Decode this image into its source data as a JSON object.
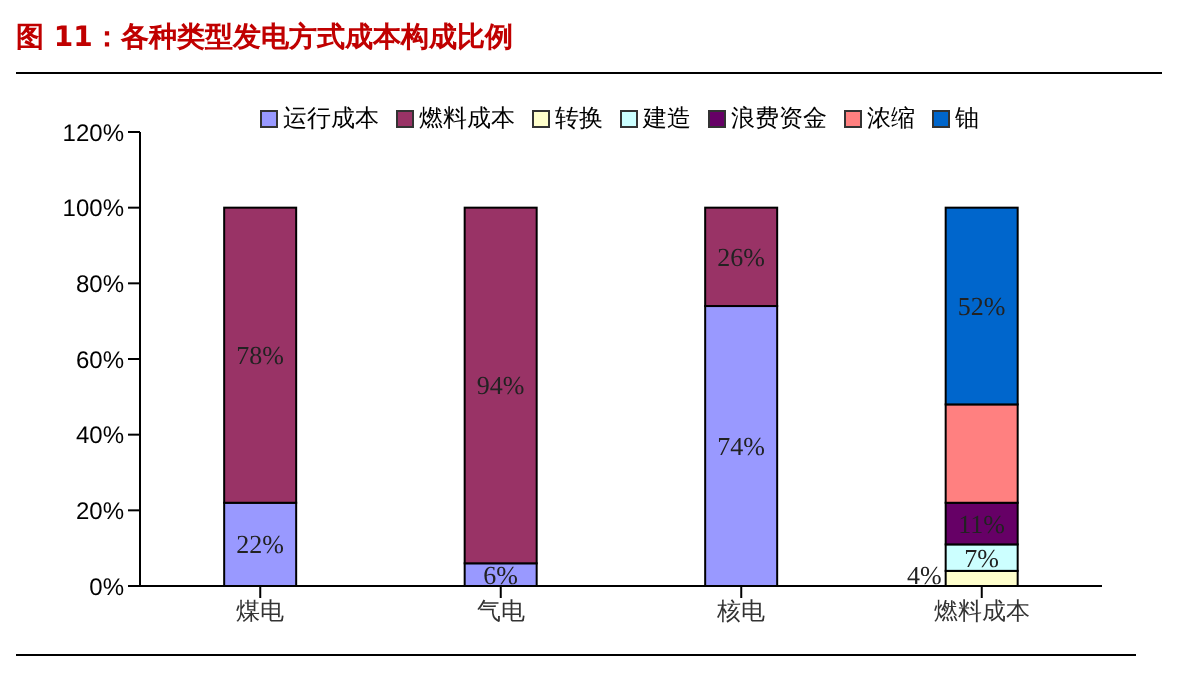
{
  "chart_data": {
    "type": "bar",
    "title": "图 11：各种类型发电方式成本构成比例",
    "categories": [
      "煤电",
      "气电",
      "核电",
      "燃料成本"
    ],
    "stacked": true,
    "legend": "top",
    "grid": false,
    "ylim": [
      0,
      120
    ],
    "yticks": [
      {
        "value": 0,
        "label": "0%"
      },
      {
        "value": 20,
        "label": "20%"
      },
      {
        "value": 40,
        "label": "40%"
      },
      {
        "value": 60,
        "label": "60%"
      },
      {
        "value": 80,
        "label": "80%"
      },
      {
        "value": 100,
        "label": "100%"
      },
      {
        "value": 120,
        "label": "120%"
      }
    ],
    "series": [
      {
        "name": "运行成本",
        "color": "#9999ff",
        "values": [
          22,
          6,
          74,
          null
        ],
        "value_labels": [
          "22%",
          "6%",
          "74%",
          null
        ]
      },
      {
        "name": "燃料成本",
        "color": "#993366",
        "values": [
          78,
          94,
          26,
          null
        ],
        "value_labels": [
          "78%",
          "94%",
          "26%",
          null
        ]
      },
      {
        "name": "转换",
        "color": "#ffffcc",
        "values": [
          null,
          null,
          null,
          4
        ],
        "value_labels": [
          null,
          null,
          null,
          "4%"
        ]
      },
      {
        "name": "建造",
        "color": "#ccffff",
        "values": [
          null,
          null,
          null,
          7
        ],
        "value_labels": [
          null,
          null,
          null,
          "7%"
        ]
      },
      {
        "name": "浪费资金",
        "color": "#660066",
        "values": [
          null,
          null,
          null,
          11
        ],
        "value_labels": [
          null,
          null,
          null,
          "11%"
        ]
      },
      {
        "name": "浓缩",
        "color": "#ff8080",
        "values": [
          null,
          null,
          null,
          26
        ],
        "value_labels": [
          null,
          null,
          null,
          null
        ]
      },
      {
        "name": "铀",
        "color": "#0066cc",
        "values": [
          null,
          null,
          null,
          52
        ],
        "value_labels": [
          null,
          null,
          null,
          "52%"
        ]
      }
    ]
  }
}
